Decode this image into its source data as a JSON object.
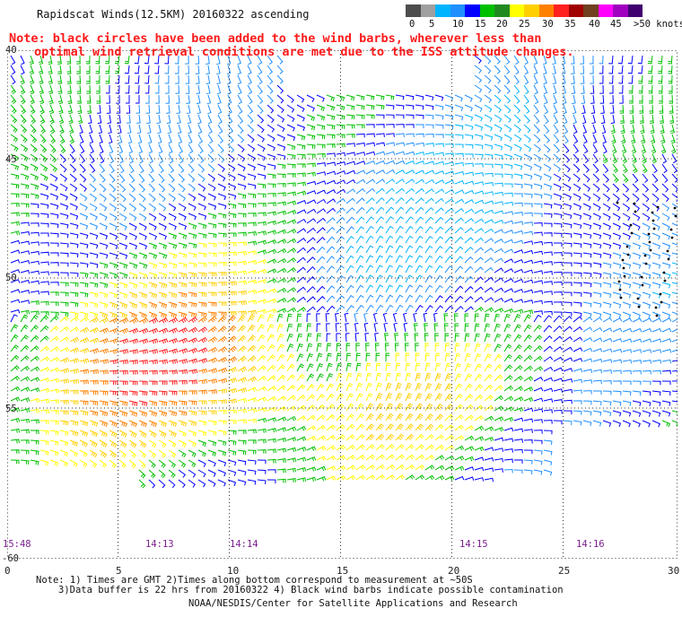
{
  "title": "Rapidscat Winds(12.5KM) 20160322 ascending",
  "note": {
    "line1": "Note: black circles have been added to the wind barbs, wherever less than",
    "line2": "optimal wind retrieval conditions are met due to the ISS attitude changes."
  },
  "legend": {
    "colors": [
      "#4d4d4d",
      "#a0a0a0",
      "#00b4ff",
      "#1f8fff",
      "#0000ff",
      "#00c000",
      "#208a20",
      "#ffff00",
      "#ffd000",
      "#ff8000",
      "#ff2020",
      "#a00000",
      "#704020",
      "#ff00ff",
      "#a000c0",
      "#400070"
    ],
    "labels": [
      "0",
      "5",
      "10",
      "15",
      "20",
      "25",
      "30",
      "35",
      "40",
      "45",
      ">50 knots"
    ]
  },
  "map": {
    "lat_labels": [
      "40",
      "45",
      "50",
      "55",
      "-60"
    ],
    "lon_labels": [
      "0",
      "5",
      "10",
      "15",
      "20",
      "25",
      "30"
    ],
    "lat_range": [
      -60,
      -40
    ],
    "lon_range": [
      0,
      30
    ],
    "grid": "dotted"
  },
  "times": [
    "15:48",
    "14:13",
    "14:14",
    "14:15",
    "14:16"
  ],
  "footer": {
    "line1": "Note: 1) Times are GMT 2)Times along bottom correspond to measurement at ~50S",
    "line2": "3)Data buffer is 22 hrs from 20160322 4) Black wind barbs indicate possible contamination",
    "line3": "NOAA/NESDIS/Center for Satellite Applications and Research"
  }
}
